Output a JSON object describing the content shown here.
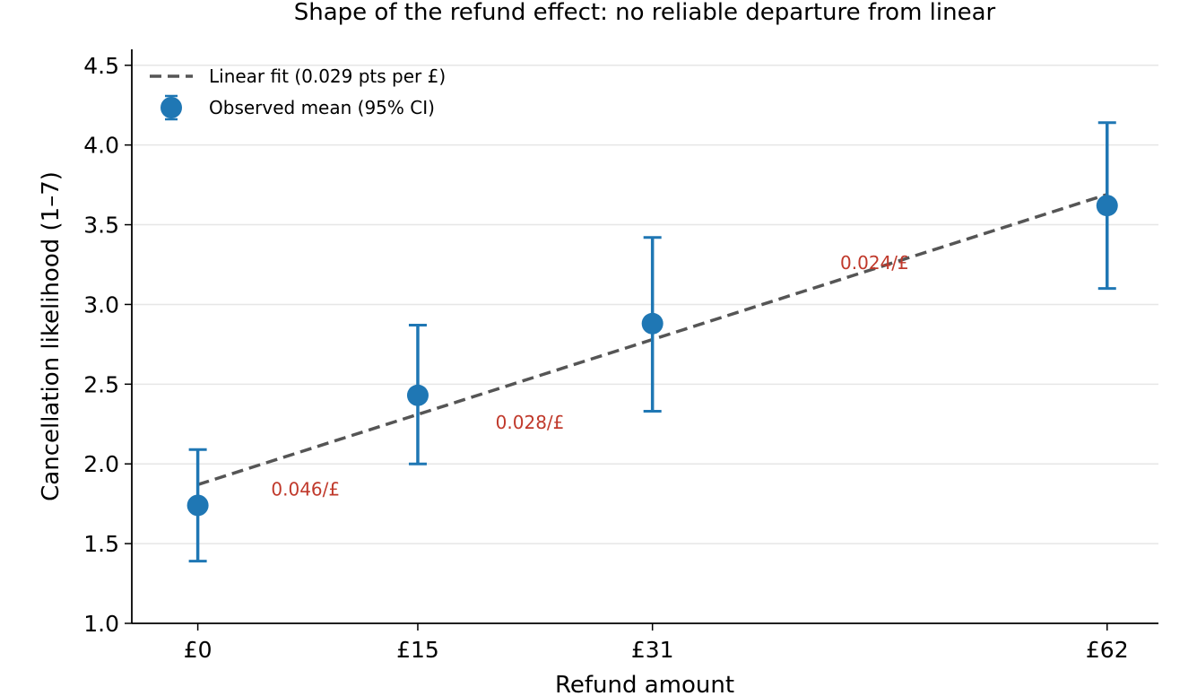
{
  "chart_data": {
    "type": "scatter",
    "title": "Shape of the refund effect: no reliable departure from linear",
    "xlabel": "Refund amount",
    "ylabel": "Cancellation likelihood (1–7)",
    "xlim": [
      -4.5,
      65.5
    ],
    "ylim": [
      1.0,
      4.6
    ],
    "x_ticks": [
      {
        "value": 0,
        "label": "£0"
      },
      {
        "value": 15,
        "label": "£15"
      },
      {
        "value": 31,
        "label": "£31"
      },
      {
        "value": 62,
        "label": "£62"
      }
    ],
    "y_ticks": [
      {
        "value": 1.0,
        "label": "1.0"
      },
      {
        "value": 1.5,
        "label": "1.5"
      },
      {
        "value": 2.0,
        "label": "2.0"
      },
      {
        "value": 2.5,
        "label": "2.5"
      },
      {
        "value": 3.0,
        "label": "3.0"
      },
      {
        "value": 3.5,
        "label": "3.5"
      },
      {
        "value": 4.0,
        "label": "4.0"
      },
      {
        "value": 4.5,
        "label": "4.5"
      }
    ],
    "grid": "horizontal",
    "legend_position": "top-left",
    "series": [
      {
        "name": "Linear fit (0.029 pts per £)",
        "kind": "line",
        "style": "dashed",
        "color": "#555555",
        "x": [
          0,
          62
        ],
        "y": [
          1.87,
          3.69
        ]
      },
      {
        "name": "Observed mean (95% CI)",
        "kind": "errorbar",
        "color": "#1f77b4",
        "x": [
          0,
          15,
          31,
          62
        ],
        "y": [
          1.74,
          2.43,
          2.88,
          3.62
        ],
        "ci_low": [
          1.39,
          2.0,
          2.33,
          3.1
        ],
        "ci_high": [
          2.09,
          2.87,
          3.42,
          4.14
        ]
      }
    ],
    "annotations": [
      {
        "text": "0.046/£",
        "x": 5,
        "y": 1.84,
        "color": "#c0392b"
      },
      {
        "text": "0.028/£",
        "x": 20.3,
        "y": 2.26,
        "color": "#c0392b"
      },
      {
        "text": "0.024/£",
        "x": 43.8,
        "y": 3.26,
        "color": "#c0392b"
      }
    ]
  }
}
